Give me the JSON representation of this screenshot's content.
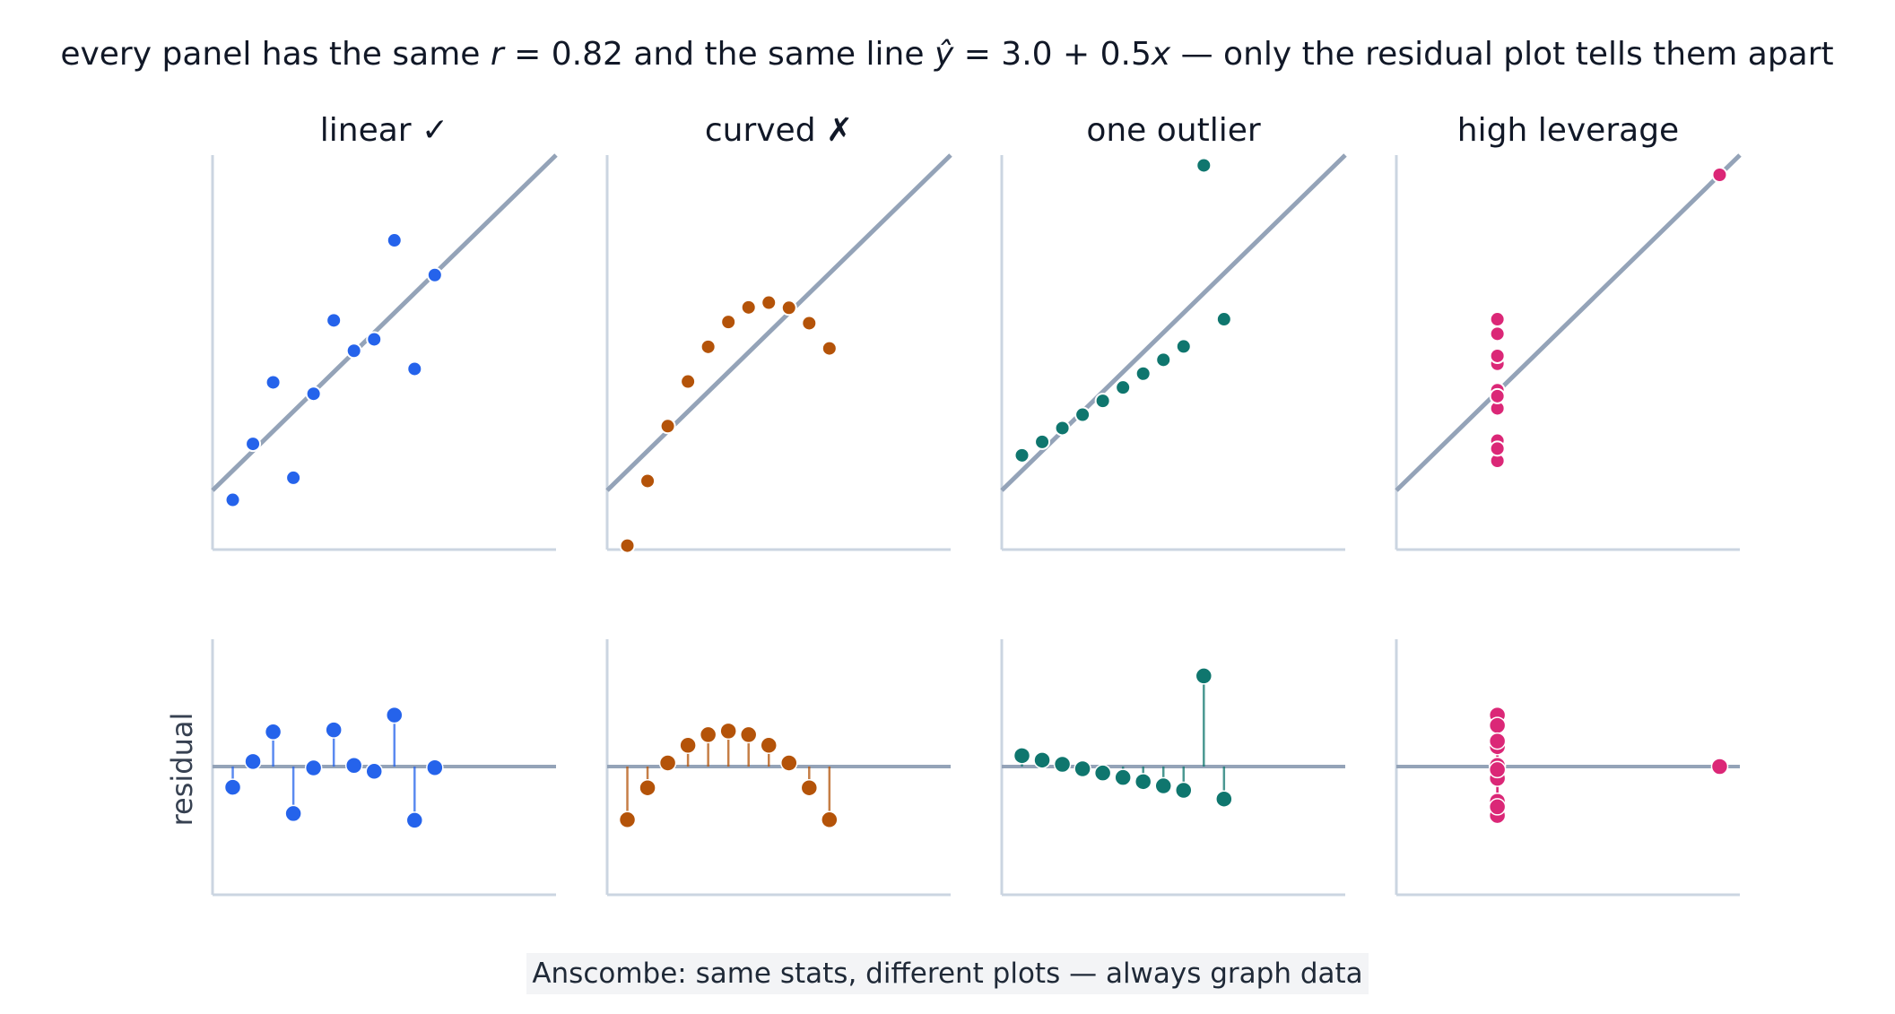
{
  "title_parts": [
    "every panel has the same ",
    "r",
    " = 0.82 and the same line ",
    "ŷ",
    " = 3.0 + 0.5",
    "x",
    " — only the residual plot tells them apart"
  ],
  "note": "Anscombe: same stats, different plots — always graph data",
  "residual_ylabel": "residual",
  "chart_data": [
    {
      "type": "scatter",
      "title": "linear ✓",
      "color": "#2563eb",
      "xlim": [
        3,
        20
      ],
      "ylim": [
        3,
        13
      ],
      "line": {
        "intercept": 3.0,
        "slope": 0.5
      },
      "points": [
        [
          4,
          4.26
        ],
        [
          5,
          5.68
        ],
        [
          6,
          7.24
        ],
        [
          7,
          4.82
        ],
        [
          8,
          6.95
        ],
        [
          9,
          8.81
        ],
        [
          10,
          8.04
        ],
        [
          11,
          8.33
        ],
        [
          12,
          10.84
        ],
        [
          13,
          7.58
        ],
        [
          14,
          9.96
        ]
      ],
      "residuals": [
        -0.74,
        0.18,
        1.24,
        -1.68,
        -0.05,
        1.31,
        0.04,
        -0.17,
        1.84,
        -1.92,
        -0.04
      ]
    },
    {
      "type": "scatter",
      "title": "curved ✗",
      "color": "#b45309",
      "xlim": [
        3,
        20
      ],
      "ylim": [
        3,
        13
      ],
      "line": {
        "intercept": 3.0,
        "slope": 0.5
      },
      "points": [
        [
          4,
          3.1
        ],
        [
          5,
          4.74
        ],
        [
          6,
          6.13
        ],
        [
          7,
          7.26
        ],
        [
          8,
          8.14
        ],
        [
          9,
          8.77
        ],
        [
          10,
          9.14
        ],
        [
          11,
          9.26
        ],
        [
          12,
          9.13
        ],
        [
          13,
          8.74
        ],
        [
          14,
          8.1
        ]
      ],
      "residuals": [
        -1.9,
        -0.76,
        0.13,
        0.76,
        1.14,
        1.27,
        1.14,
        0.76,
        0.13,
        -0.76,
        -1.9
      ]
    },
    {
      "type": "scatter",
      "title": "one outlier",
      "color": "#0f766e",
      "xlim": [
        3,
        20
      ],
      "ylim": [
        3,
        13
      ],
      "line": {
        "intercept": 3.0,
        "slope": 0.5
      },
      "points": [
        [
          4,
          5.39
        ],
        [
          5,
          5.73
        ],
        [
          6,
          6.08
        ],
        [
          7,
          6.42
        ],
        [
          8,
          6.77
        ],
        [
          9,
          7.11
        ],
        [
          10,
          7.46
        ],
        [
          11,
          7.81
        ],
        [
          12,
          8.15
        ],
        [
          13,
          12.74
        ],
        [
          14,
          8.84
        ]
      ],
      "residuals": [
        0.39,
        0.23,
        0.08,
        -0.08,
        -0.23,
        -0.39,
        -0.54,
        -0.69,
        -0.85,
        3.24,
        -1.16
      ]
    },
    {
      "type": "scatter",
      "title": "high leverage",
      "color": "#db2777",
      "xlim": [
        3,
        20
      ],
      "ylim": [
        3,
        13
      ],
      "line": {
        "intercept": 3.0,
        "slope": 0.5
      },
      "points": [
        [
          8,
          6.58
        ],
        [
          8,
          5.76
        ],
        [
          8,
          7.71
        ],
        [
          8,
          8.84
        ],
        [
          8,
          8.47
        ],
        [
          8,
          7.04
        ],
        [
          8,
          5.25
        ],
        [
          19,
          12.5
        ],
        [
          8,
          5.56
        ],
        [
          8,
          7.91
        ],
        [
          8,
          6.89
        ]
      ],
      "residuals": [
        -0.42,
        -1.24,
        0.71,
        1.84,
        1.47,
        0.04,
        -1.75,
        0.0,
        -1.44,
        0.91,
        -0.11
      ]
    }
  ]
}
